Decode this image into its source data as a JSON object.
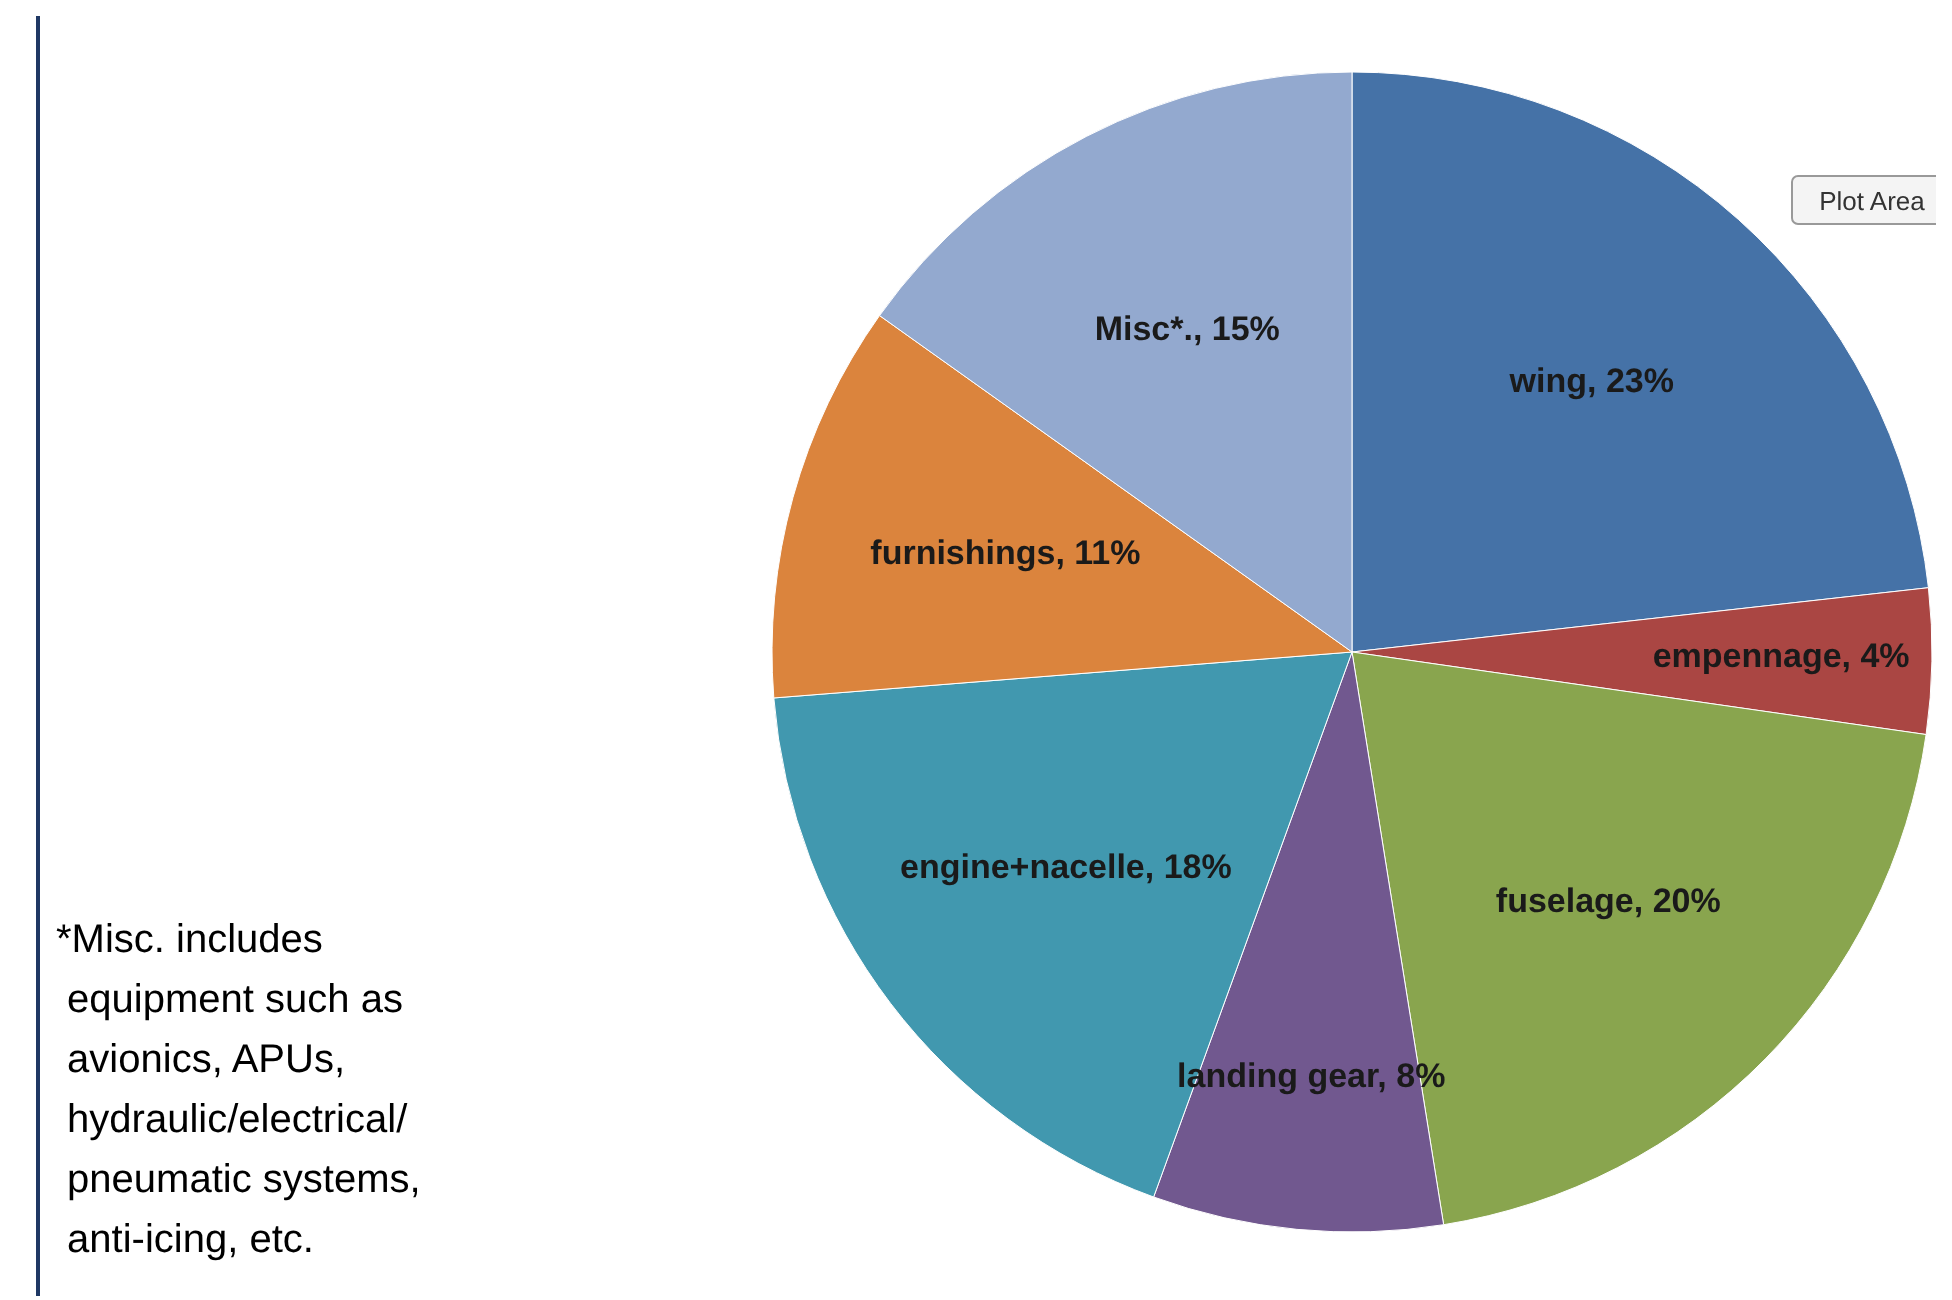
{
  "chart_data": {
    "type": "pie",
    "categories": [
      "wing",
      "empennage",
      "fuselage",
      "landing gear",
      "engine+nacelle",
      "furnishings",
      "Misc*."
    ],
    "values": [
      23,
      4,
      20,
      8,
      18,
      11,
      15
    ],
    "value_labels": [
      "23%",
      "4%",
      "20%",
      "8%",
      "18%",
      "11%",
      "15%"
    ],
    "colors": [
      "#4572a7",
      "#aa4643",
      "#89a54e",
      "#71588f",
      "#4198af",
      "#db843d",
      "#93a9cf"
    ],
    "annotations": [
      "*Misc. includes\n equipment such as\n avionics, APUs,\n hydraulic/electrical/\n pneumatic systems,\n anti-icing, etc.",
      "Plot Area"
    ]
  }
}
